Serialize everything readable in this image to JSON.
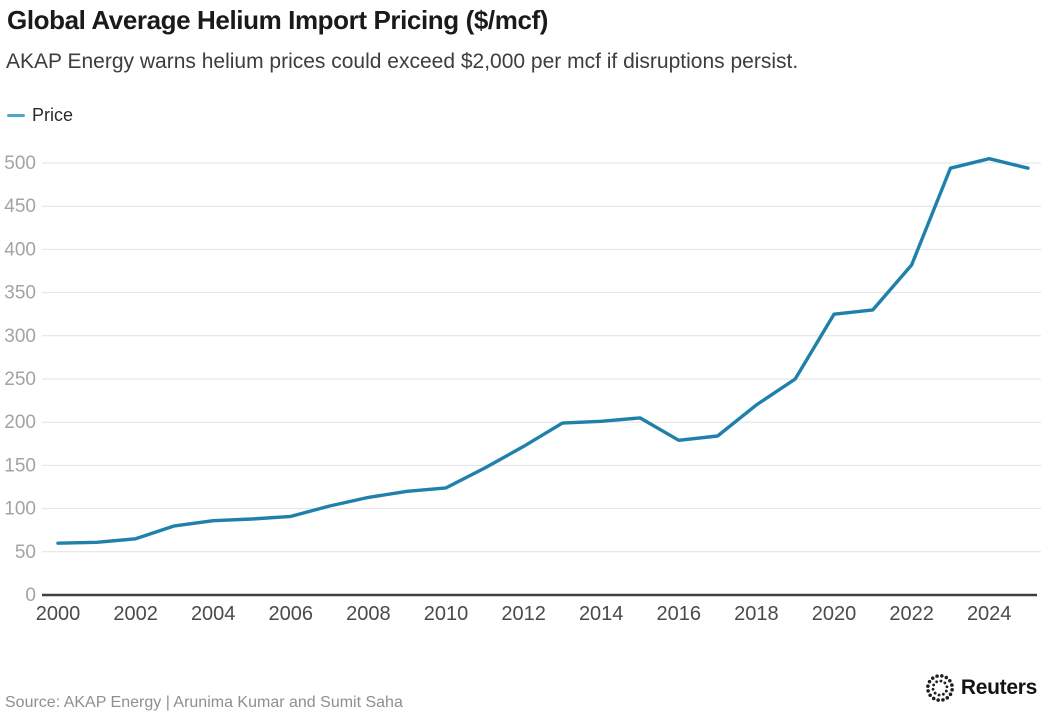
{
  "header": {
    "title": "Global Average Helium Import Pricing ($/mcf)",
    "subtitle": "AKAP Energy warns helium prices could exceed $2,000 per mcf if disruptions persist."
  },
  "legend": {
    "label": "Price",
    "swatch_color": "#4aa8cf"
  },
  "chart_data": {
    "type": "line",
    "title": "Global Average Helium Import Pricing ($/mcf)",
    "xlabel": "",
    "ylabel": "",
    "x": [
      2000,
      2001,
      2002,
      2003,
      2004,
      2005,
      2006,
      2007,
      2008,
      2009,
      2010,
      2011,
      2012,
      2013,
      2014,
      2015,
      2016,
      2017,
      2018,
      2019,
      2020,
      2021,
      2022,
      2023,
      2024,
      2025
    ],
    "series": [
      {
        "name": "Price",
        "color": "#1f81ab",
        "values": [
          60,
          61,
          65,
          80,
          86,
          88,
          91,
          103,
          113,
          120,
          124,
          147,
          172,
          199,
          201,
          205,
          179,
          184,
          220,
          250,
          325,
          330,
          382,
          494,
          505,
          494
        ]
      }
    ],
    "ylim": [
      0,
      500
    ],
    "yticks": [
      0,
      50,
      100,
      150,
      200,
      250,
      300,
      350,
      400,
      450,
      500
    ],
    "xticks": [
      2000,
      2002,
      2004,
      2006,
      2008,
      2010,
      2012,
      2014,
      2016,
      2018,
      2020,
      2022,
      2024
    ],
    "grid": "horizontal",
    "legend_position": "top-left",
    "gridline_color": "#e2e2e2",
    "axis_color": "#3f3f3f",
    "ytick_color": "#a3a3a3",
    "xtick_color": "#4a4a4a"
  },
  "footer": {
    "source": "Source: AKAP Energy | Arunima Kumar and Sumit Saha",
    "logo_text": "Reuters"
  }
}
